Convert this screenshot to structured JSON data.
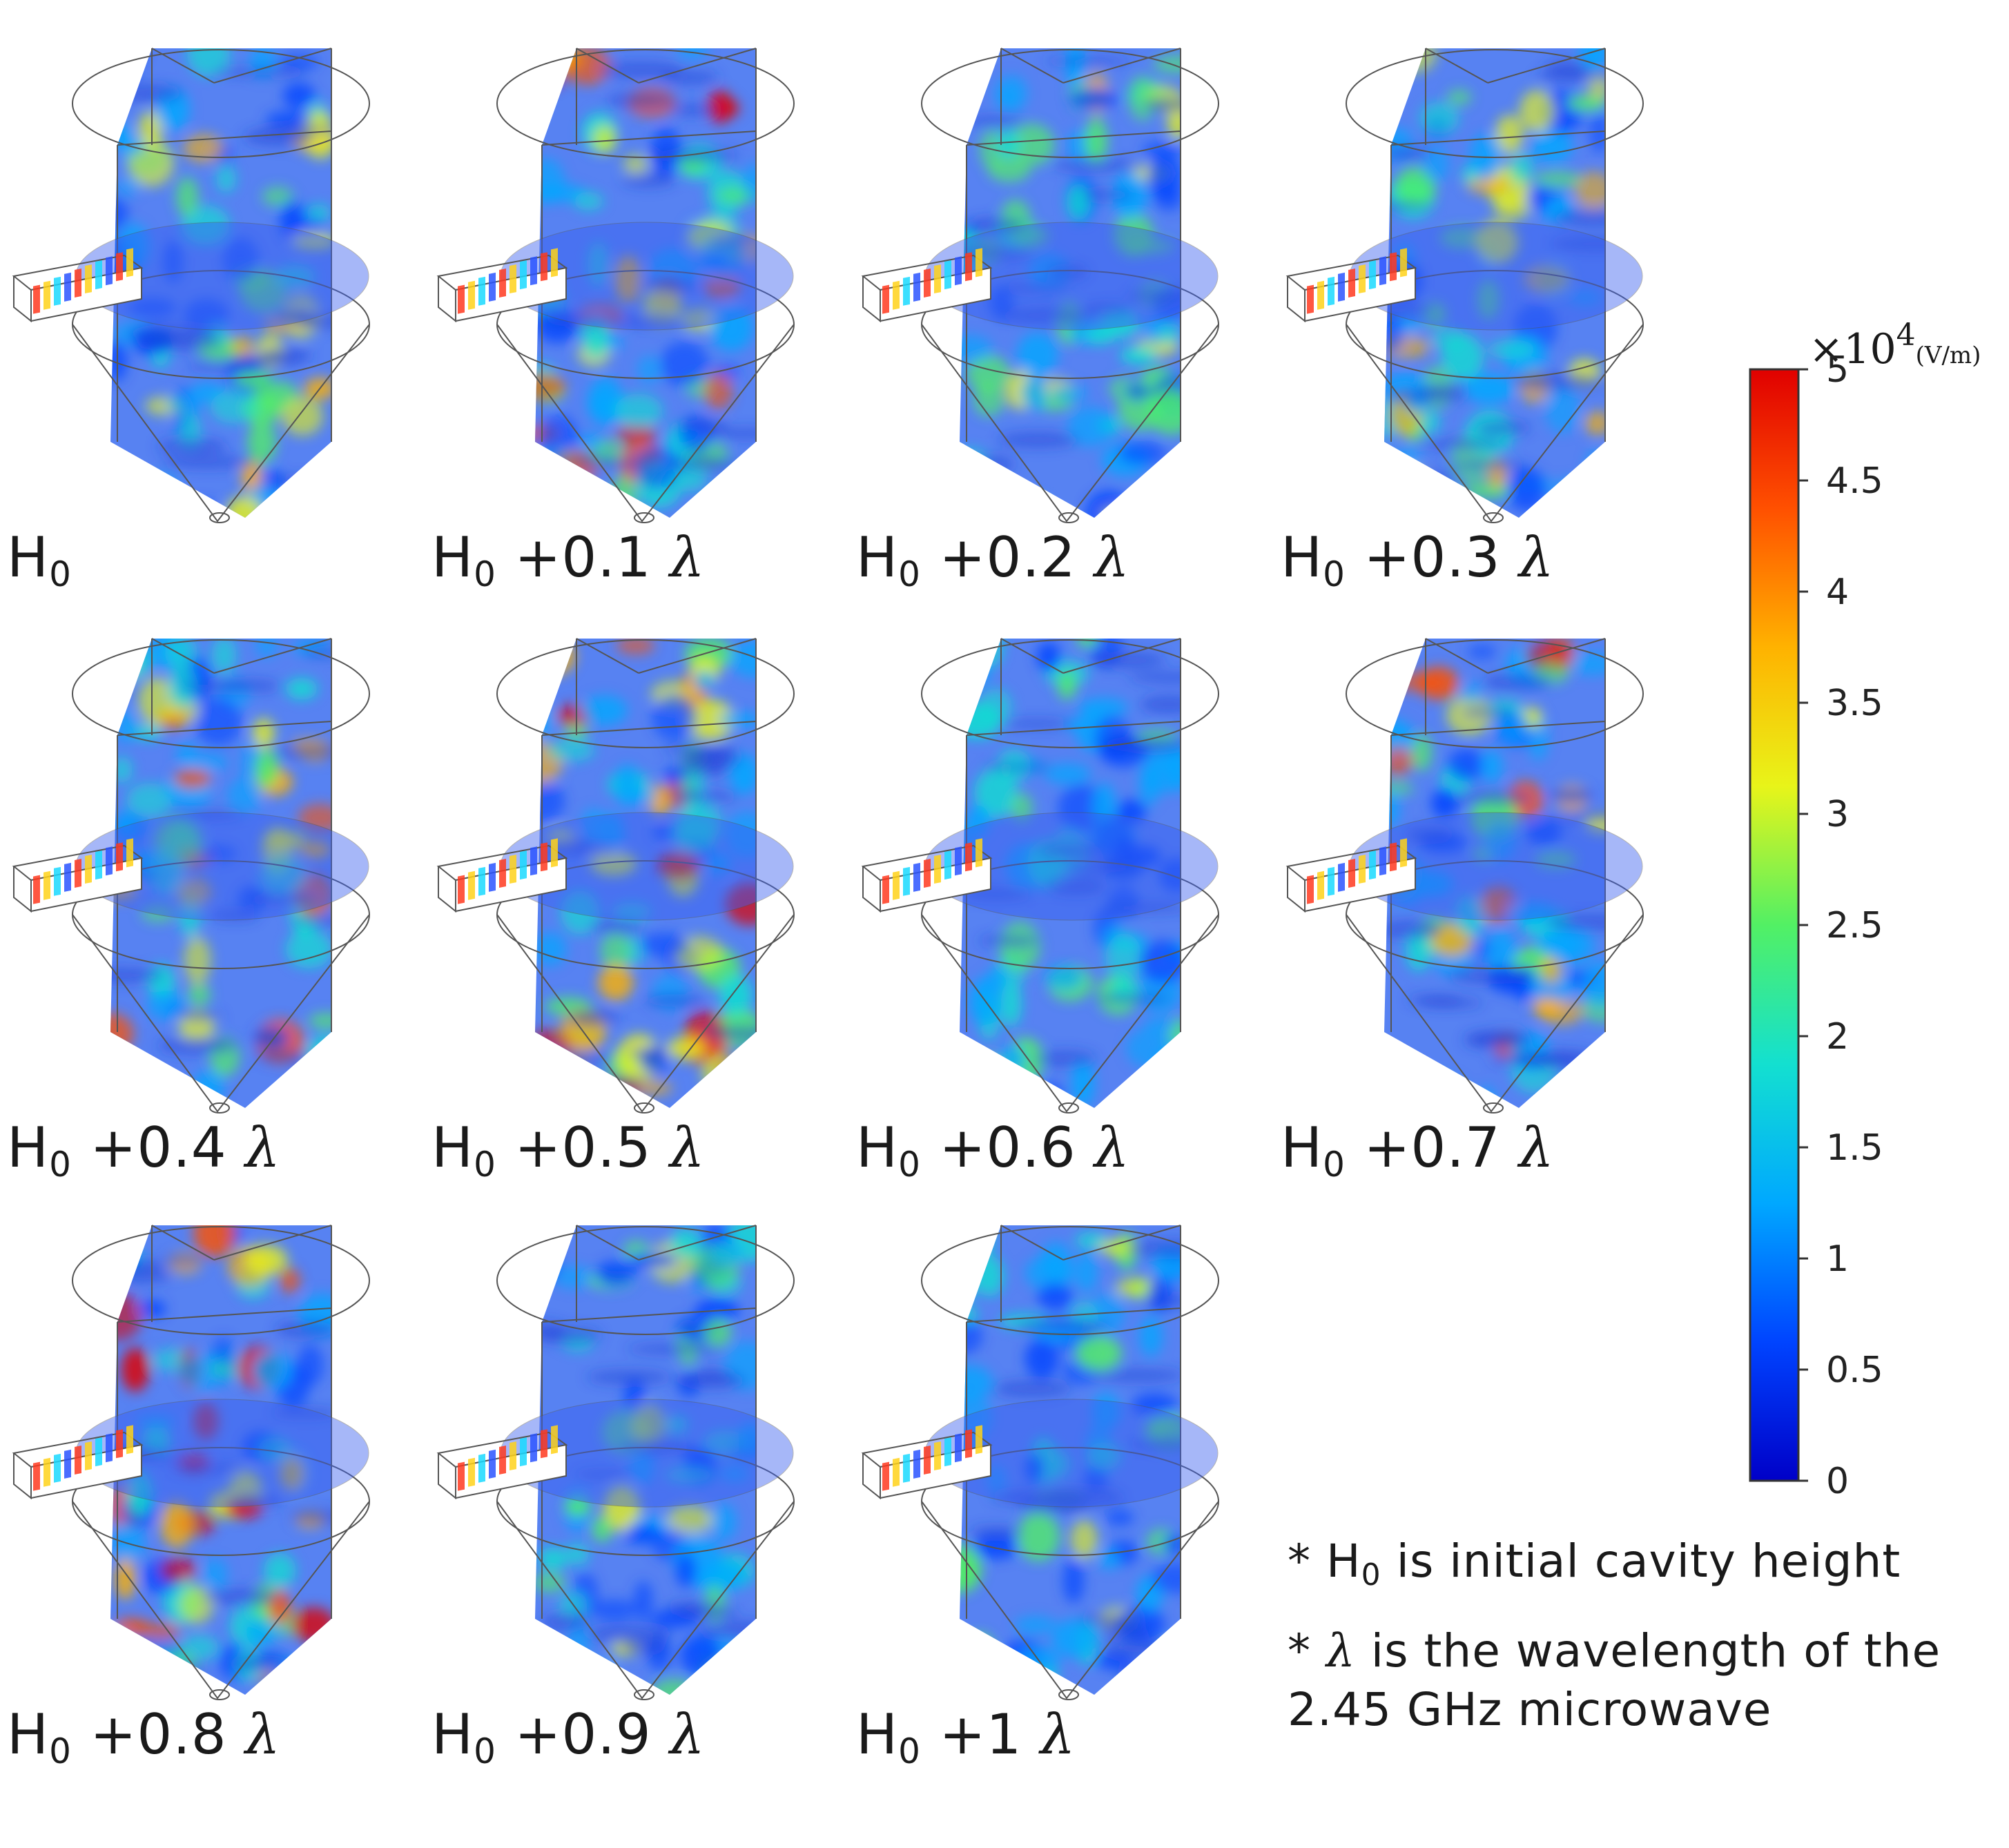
{
  "colors": {
    "colorbar_stops": [
      "#0000c8",
      "#0044ff",
      "#00a8ff",
      "#13e0d0",
      "#52f064",
      "#e8f419",
      "#ffb200",
      "#ff5000",
      "#e00000"
    ]
  },
  "panels": [
    {
      "base": "H",
      "sub": "0",
      "suffix": "",
      "lambda": "",
      "intensity": 0.35
    },
    {
      "base": "H",
      "sub": "0",
      "suffix": " +0.1 ",
      "lambda": "λ",
      "intensity": 0.72
    },
    {
      "base": "H",
      "sub": "0",
      "suffix": " +0.2 ",
      "lambda": "λ",
      "intensity": 0.28
    },
    {
      "base": "H",
      "sub": "0",
      "suffix": " +0.3 ",
      "lambda": "λ",
      "intensity": 0.42
    },
    {
      "base": "H",
      "sub": "0",
      "suffix": " +0.4 ",
      "lambda": "λ",
      "intensity": 0.55
    },
    {
      "base": "H",
      "sub": "0",
      "suffix": " +0.5 ",
      "lambda": "λ",
      "intensity": 0.95
    },
    {
      "base": "H",
      "sub": "0",
      "suffix": " +0.6 ",
      "lambda": "λ",
      "intensity": 0.12
    },
    {
      "base": "H",
      "sub": "0",
      "suffix": " +0.7 ",
      "lambda": "λ",
      "intensity": 0.65
    },
    {
      "base": "H",
      "sub": "0",
      "suffix": " +0.8 ",
      "lambda": "λ",
      "intensity": 0.88
    },
    {
      "base": "H",
      "sub": "0",
      "suffix": " +0.9 ",
      "lambda": "λ",
      "intensity": 0.15
    },
    {
      "base": "H",
      "sub": "0",
      "suffix": " +1 ",
      "lambda": "λ",
      "intensity": 0.15
    }
  ],
  "colorbar": {
    "multiplier": "×10",
    "exponent": "4",
    "unit": "(V/m)",
    "ticks": [
      "5",
      "4.5",
      "4",
      "3.5",
      "3",
      "2.5",
      "2",
      "1.5",
      "1",
      "0.5",
      "0"
    ],
    "range": [
      0,
      5
    ]
  },
  "notes": {
    "note1": {
      "star": "* ",
      "base": "H",
      "sub": "0",
      "rest": " is initial cavity height"
    },
    "note2": {
      "star": "* ",
      "lambda": "λ",
      "rest": " is the wavelength of the",
      "line2": "2.45 GHz microwave"
    }
  }
}
